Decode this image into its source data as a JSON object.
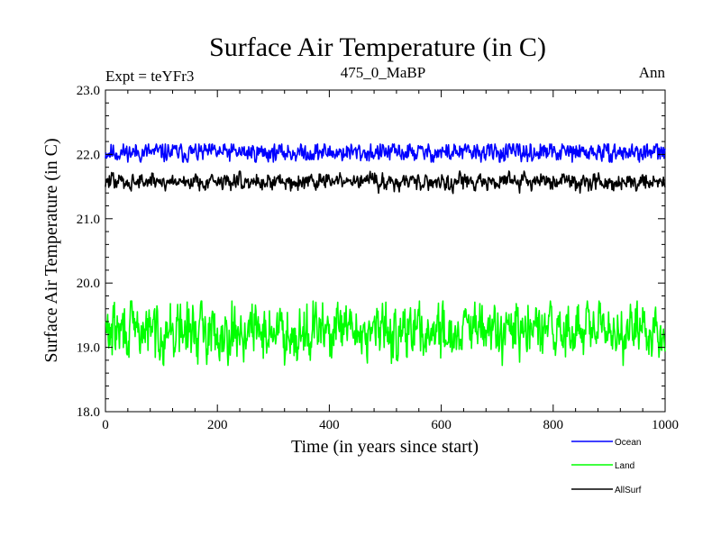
{
  "chart_data": {
    "type": "line",
    "title": "Surface Air Temperature (in C)",
    "subtitle_left": "Expt = teYFr3",
    "subtitle_center": "475_0_MaBP",
    "subtitle_right": "Ann",
    "xlabel": "Time (in years since start)",
    "ylabel": "Surface Air Temperature (in C)",
    "xlim": [
      0,
      1000
    ],
    "ylim": [
      18.0,
      23.0
    ],
    "xticks": [
      0,
      200,
      400,
      600,
      800,
      1000
    ],
    "xtick_labels": [
      "0",
      "200",
      "400",
      "600",
      "800",
      "1000"
    ],
    "yticks": [
      18.0,
      19.0,
      20.0,
      21.0,
      22.0,
      23.0
    ],
    "ytick_labels": [
      "18.0",
      "19.0",
      "20.0",
      "21.0",
      "22.0",
      "23.0"
    ],
    "legend_position": "bottom-right, below plot",
    "series": [
      {
        "name": "Ocean",
        "color": "#0000ff",
        "mean": 22.03,
        "amplitude": 0.07,
        "min": 21.88,
        "max": 22.16,
        "seed": 11
      },
      {
        "name": "Land",
        "color": "#00ff00",
        "mean": 19.25,
        "amplitude": 0.2,
        "min": 18.72,
        "max": 19.72,
        "seed": 29
      },
      {
        "name": "AllSurf",
        "color": "#000000",
        "mean": 21.58,
        "amplitude": 0.06,
        "min": 21.37,
        "max": 21.74,
        "seed": 47
      }
    ]
  }
}
